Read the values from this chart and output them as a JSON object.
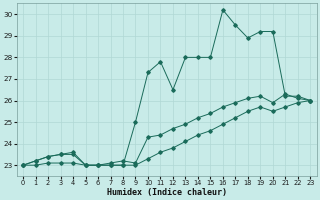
{
  "xlabel": "Humidex (Indice chaleur)",
  "bg_color": "#c8ebe8",
  "grid_color": "#b0d8d5",
  "line_color": "#1a6b5a",
  "xlim_min": -0.5,
  "xlim_max": 23.5,
  "ylim_min": 22.5,
  "ylim_max": 30.5,
  "xticks": [
    0,
    1,
    2,
    3,
    4,
    5,
    6,
    7,
    8,
    9,
    10,
    11,
    12,
    13,
    14,
    15,
    16,
    17,
    18,
    19,
    20,
    21,
    22,
    23
  ],
  "yticks": [
    23,
    24,
    25,
    26,
    27,
    28,
    29,
    30
  ],
  "line1_x": [
    0,
    1,
    2,
    3,
    4,
    5,
    6,
    7,
    8,
    9,
    10,
    11,
    12,
    13,
    14,
    15,
    16,
    17,
    18,
    19,
    20,
    21,
    22,
    23
  ],
  "line1_y": [
    23.0,
    23.2,
    23.4,
    23.5,
    23.6,
    23.0,
    23.0,
    23.1,
    23.2,
    23.1,
    24.3,
    24.4,
    24.7,
    24.9,
    25.2,
    25.4,
    25.7,
    25.9,
    26.1,
    26.2,
    25.9,
    26.3,
    26.1,
    26.0
  ],
  "line2_x": [
    0,
    1,
    2,
    3,
    4,
    5,
    6,
    7,
    8,
    9,
    10,
    11,
    12,
    13,
    14,
    15,
    16,
    17,
    18,
    19,
    20,
    21,
    22,
    23
  ],
  "line2_y": [
    23.0,
    23.2,
    23.4,
    23.5,
    23.5,
    23.0,
    23.0,
    23.0,
    23.0,
    25.0,
    27.3,
    27.8,
    26.5,
    28.0,
    28.0,
    28.0,
    30.2,
    29.5,
    28.9,
    29.2,
    29.2,
    26.2,
    26.2,
    26.0
  ],
  "line3_x": [
    0,
    1,
    2,
    3,
    4,
    5,
    6,
    7,
    8,
    9,
    10,
    11,
    12,
    13,
    14,
    15,
    16,
    17,
    18,
    19,
    20,
    21,
    22,
    23
  ],
  "line3_y": [
    23.0,
    23.0,
    23.1,
    23.1,
    23.1,
    23.0,
    23.0,
    23.0,
    23.0,
    23.0,
    23.3,
    23.6,
    23.8,
    24.1,
    24.4,
    24.6,
    24.9,
    25.2,
    25.5,
    25.7,
    25.5,
    25.7,
    25.9,
    26.0
  ]
}
